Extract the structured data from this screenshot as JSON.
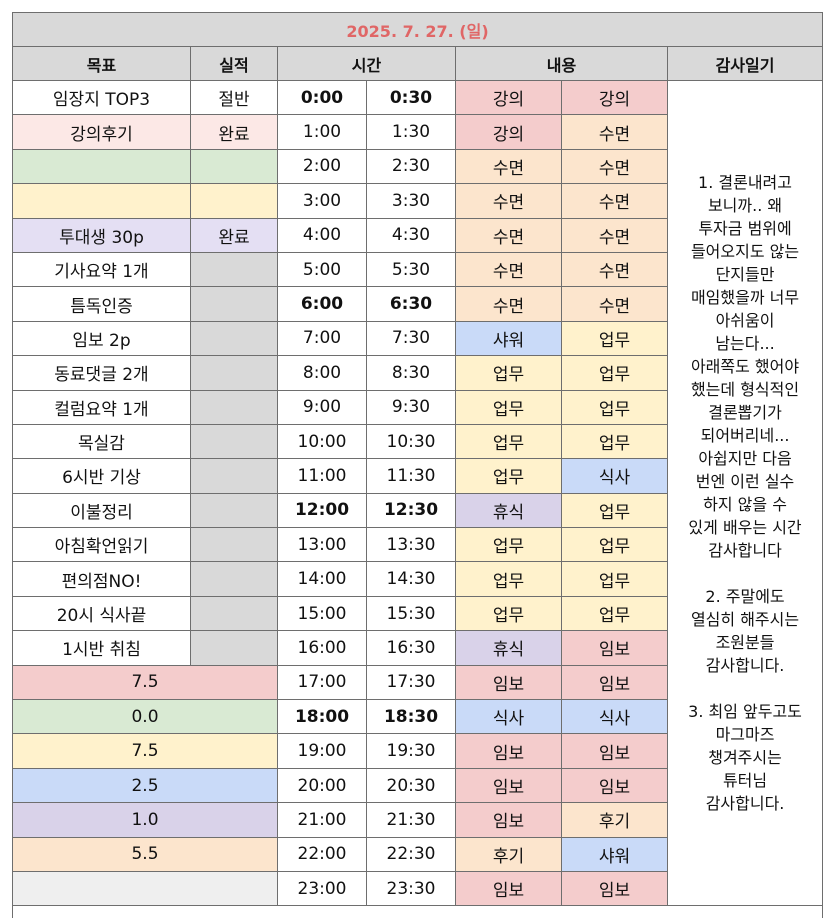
{
  "title": "2025. 7. 27. (일)",
  "headers": {
    "goal": "목표",
    "result": "실적",
    "time": "시간",
    "content": "내용",
    "diary": "감사일기"
  },
  "colors": {
    "lecture": "#f4cccc",
    "sleep": "#fce5cd",
    "work": "#fff2cc",
    "meal": "#c9daf8",
    "rest": "#d9d2e9",
    "green": "#d9ead3",
    "gray": "#d9d9d9",
    "light_pink": "#fce8e6",
    "light_yellow": "#fff2cc",
    "lavender": "#e4dff3",
    "light_gray": "#efefef",
    "white": "#ffffff"
  },
  "rows": [
    {
      "goal": "임장지 TOP3",
      "goal_bg": "white",
      "result": "절반",
      "result_bg": "white",
      "start": "0:00",
      "end": "0:30",
      "bold": true,
      "a": "강의",
      "a_bg": "lecture",
      "b": "강의",
      "b_bg": "lecture"
    },
    {
      "goal": "강의후기",
      "goal_bg": "light_pink",
      "result": "완료",
      "result_bg": "light_pink",
      "start": "1:00",
      "end": "1:30",
      "bold": false,
      "a": "강의",
      "a_bg": "lecture",
      "b": "수면",
      "b_bg": "sleep"
    },
    {
      "goal": "",
      "goal_bg": "green",
      "result": "",
      "result_bg": "green",
      "start": "2:00",
      "end": "2:30",
      "bold": false,
      "a": "수면",
      "a_bg": "sleep",
      "b": "수면",
      "b_bg": "sleep"
    },
    {
      "goal": "",
      "goal_bg": "light_yellow",
      "result": "",
      "result_bg": "light_yellow",
      "start": "3:00",
      "end": "3:30",
      "bold": false,
      "a": "수면",
      "a_bg": "sleep",
      "b": "수면",
      "b_bg": "sleep"
    },
    {
      "goal": "투대생 30p",
      "goal_bg": "lavender",
      "result": "완료",
      "result_bg": "lavender",
      "start": "4:00",
      "end": "4:30",
      "bold": false,
      "a": "수면",
      "a_bg": "sleep",
      "b": "수면",
      "b_bg": "sleep"
    },
    {
      "goal": "기사요약 1개",
      "goal_bg": "white",
      "result": "",
      "result_bg": "gray",
      "start": "5:00",
      "end": "5:30",
      "bold": false,
      "a": "수면",
      "a_bg": "sleep",
      "b": "수면",
      "b_bg": "sleep"
    },
    {
      "goal": "틈독인증",
      "goal_bg": "white",
      "result": "",
      "result_bg": "gray",
      "start": "6:00",
      "end": "6:30",
      "bold": true,
      "a": "수면",
      "a_bg": "sleep",
      "b": "수면",
      "b_bg": "sleep"
    },
    {
      "goal": "임보 2p",
      "goal_bg": "white",
      "result": "",
      "result_bg": "gray",
      "start": "7:00",
      "end": "7:30",
      "bold": false,
      "a": "샤워",
      "a_bg": "meal",
      "b": "업무",
      "b_bg": "work"
    },
    {
      "goal": "동료댓글 2개",
      "goal_bg": "white",
      "result": "",
      "result_bg": "gray",
      "start": "8:00",
      "end": "8:30",
      "bold": false,
      "a": "업무",
      "a_bg": "work",
      "b": "업무",
      "b_bg": "work"
    },
    {
      "goal": "컬럼요약 1개",
      "goal_bg": "white",
      "result": "",
      "result_bg": "gray",
      "start": "9:00",
      "end": "9:30",
      "bold": false,
      "a": "업무",
      "a_bg": "work",
      "b": "업무",
      "b_bg": "work"
    },
    {
      "goal": "목실감",
      "goal_bg": "white",
      "result": "",
      "result_bg": "gray",
      "start": "10:00",
      "end": "10:30",
      "bold": false,
      "a": "업무",
      "a_bg": "work",
      "b": "업무",
      "b_bg": "work"
    },
    {
      "goal": "6시반 기상",
      "goal_bg": "white",
      "result": "",
      "result_bg": "gray",
      "start": "11:00",
      "end": "11:30",
      "bold": false,
      "a": "업무",
      "a_bg": "work",
      "b": "식사",
      "b_bg": "meal"
    },
    {
      "goal": "이불정리",
      "goal_bg": "white",
      "result": "",
      "result_bg": "gray",
      "start": "12:00",
      "end": "12:30",
      "bold": true,
      "a": "휴식",
      "a_bg": "rest",
      "b": "업무",
      "b_bg": "work"
    },
    {
      "goal": "아침확언읽기",
      "goal_bg": "white",
      "result": "",
      "result_bg": "gray",
      "start": "13:00",
      "end": "13:30",
      "bold": false,
      "a": "업무",
      "a_bg": "work",
      "b": "업무",
      "b_bg": "work"
    },
    {
      "goal": "편의점NO!",
      "goal_bg": "white",
      "result": "",
      "result_bg": "gray",
      "start": "14:00",
      "end": "14:30",
      "bold": false,
      "a": "업무",
      "a_bg": "work",
      "b": "업무",
      "b_bg": "work"
    },
    {
      "goal": "20시 식사끝",
      "goal_bg": "white",
      "result": "",
      "result_bg": "gray",
      "start": "15:00",
      "end": "15:30",
      "bold": false,
      "a": "업무",
      "a_bg": "work",
      "b": "업무",
      "b_bg": "work"
    },
    {
      "goal": "1시반 취침",
      "goal_bg": "white",
      "result": "",
      "result_bg": "gray",
      "start": "16:00",
      "end": "16:30",
      "bold": false,
      "a": "휴식",
      "a_bg": "rest",
      "b": "임보",
      "b_bg": "lecture"
    },
    {
      "merged": "7.5",
      "merged_bg": "lecture",
      "start": "17:00",
      "end": "17:30",
      "bold": false,
      "a": "임보",
      "a_bg": "lecture",
      "b": "임보",
      "b_bg": "lecture"
    },
    {
      "merged": "0.0",
      "merged_bg": "green",
      "start": "18:00",
      "end": "18:30",
      "bold": true,
      "a": "식사",
      "a_bg": "meal",
      "b": "식사",
      "b_bg": "meal"
    },
    {
      "merged": "7.5",
      "merged_bg": "light_yellow",
      "start": "19:00",
      "end": "19:30",
      "bold": false,
      "a": "임보",
      "a_bg": "lecture",
      "b": "임보",
      "b_bg": "lecture"
    },
    {
      "merged": "2.5",
      "merged_bg": "meal",
      "start": "20:00",
      "end": "20:30",
      "bold": false,
      "a": "임보",
      "a_bg": "lecture",
      "b": "임보",
      "b_bg": "lecture"
    },
    {
      "merged": "1.0",
      "merged_bg": "rest",
      "start": "21:00",
      "end": "21:30",
      "bold": false,
      "a": "임보",
      "a_bg": "lecture",
      "b": "후기",
      "b_bg": "sleep"
    },
    {
      "merged": "5.5",
      "merged_bg": "sleep",
      "start": "22:00",
      "end": "22:30",
      "bold": false,
      "a": "후기",
      "a_bg": "sleep",
      "b": "샤워",
      "b_bg": "meal"
    },
    {
      "merged": "",
      "merged_bg": "light_gray",
      "start": "23:00",
      "end": "23:30",
      "bold": false,
      "a": "임보",
      "a_bg": "lecture",
      "b": "임보",
      "b_bg": "lecture"
    }
  ],
  "diary": "1. 결론내려고\n보니까.. 왜\n투자금 범위에\n들어오지도 않는\n단지들만\n매임했을까 너무\n아쉬움이\n남는다...\n아래쪽도 했어야\n했는데 형식적인\n결론뽑기가\n되어버리네...\n아쉽지만 다음\n번엔 이런 실수\n하지 않을 수\n있게 배우는 시간\n감사합니다\n\n2. 주말에도\n열심히 해주시는\n조원분들\n감사합니다.\n\n3. 최임 앞두고도\n마그마즈\n챙겨주시는\n튜터님\n감사합니다."
}
